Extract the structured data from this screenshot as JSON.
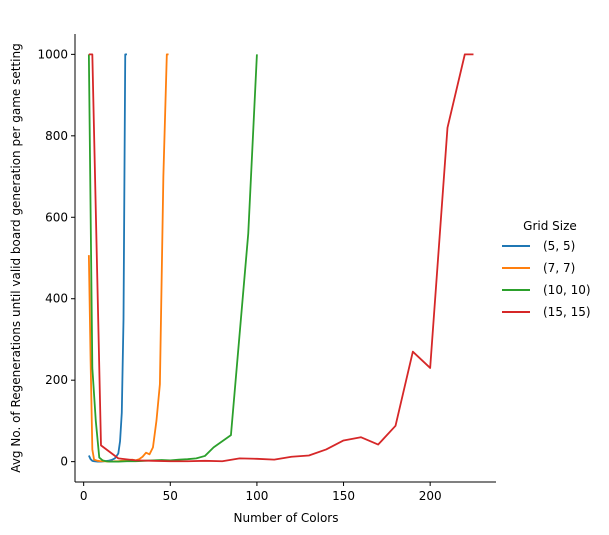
{
  "chart_data": {
    "type": "line",
    "xlabel": "Number of Colors",
    "ylabel": "Avg No. of Regenerations until valid board generation per game setting",
    "xlim": [
      -5,
      238
    ],
    "ylim": [
      -50,
      1050
    ],
    "xticks": [
      0,
      50,
      100,
      150,
      200
    ],
    "yticks": [
      0,
      200,
      400,
      600,
      800,
      1000
    ],
    "grid": false,
    "legend": {
      "title": "Grid Size",
      "placement": "right"
    },
    "series": [
      {
        "name": "(5, 5)",
        "color": "#1f77b4",
        "x": [
          3,
          4,
          5,
          6,
          8,
          10,
          12,
          14,
          16,
          18,
          20,
          21,
          22,
          23,
          24,
          25
        ],
        "y": [
          15,
          6,
          2,
          1,
          0,
          0,
          1,
          2,
          4,
          8,
          20,
          50,
          120,
          350,
          1000,
          1000
        ]
      },
      {
        "name": "(7, 7)",
        "color": "#ff7f0e",
        "x": [
          3,
          4,
          5,
          6,
          8,
          10,
          12,
          14,
          16,
          18,
          20,
          22,
          24,
          26,
          28,
          30,
          32,
          34,
          36,
          38,
          40,
          42,
          44,
          46,
          48,
          49
        ],
        "y": [
          507,
          250,
          30,
          5,
          2,
          1,
          1,
          0,
          0,
          1,
          1,
          2,
          2,
          4,
          5,
          3,
          6,
          12,
          22,
          18,
          35,
          100,
          190,
          700,
          1000,
          1000
        ]
      },
      {
        "name": "(10, 10)",
        "color": "#2ca02c",
        "x": [
          3,
          5,
          7,
          9,
          11,
          13,
          15,
          20,
          25,
          30,
          35,
          40,
          45,
          50,
          55,
          60,
          65,
          70,
          75,
          85,
          95,
          100
        ],
        "y": [
          1000,
          230,
          100,
          10,
          3,
          1,
          0,
          0,
          1,
          1,
          2,
          3,
          4,
          3,
          5,
          6,
          8,
          14,
          35,
          65,
          560,
          1000
        ]
      },
      {
        "name": "(15, 15)",
        "color": "#d62728",
        "x": [
          3,
          5,
          10,
          20,
          30,
          40,
          50,
          60,
          70,
          80,
          90,
          100,
          110,
          120,
          130,
          140,
          150,
          160,
          170,
          180,
          190,
          200,
          210,
          220,
          225
        ],
        "y": [
          1000,
          1000,
          40,
          8,
          3,
          2,
          1,
          1,
          2,
          1,
          8,
          7,
          5,
          12,
          15,
          30,
          52,
          60,
          42,
          88,
          270,
          230,
          820,
          1000,
          1000
        ]
      }
    ]
  }
}
